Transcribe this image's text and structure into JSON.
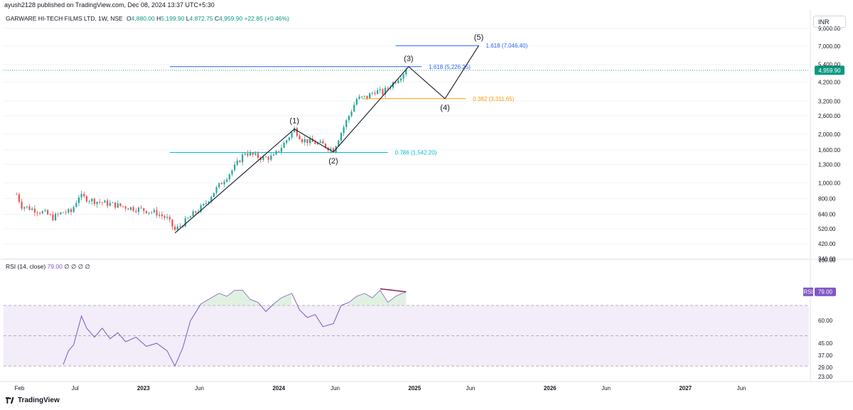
{
  "header": {
    "published": "ayush2128 published on TradingView.com, Dec 08, 2024 13:37 UTC+5:30",
    "symbol": "GARWARE HI-TECH FILMS LTD, 1W, NSE",
    "open_label": "O",
    "open": "4,880.00",
    "high_label": "H",
    "high": "5,199.90",
    "low_label": "L",
    "low": "4,872.75",
    "close_label": "C",
    "close": "4,959.90",
    "change": "+22.85 (+0.46%)",
    "currency": "INR"
  },
  "rsi_header": {
    "label": "RSI (14, close)",
    "value": "79.00",
    "extras": "∅ ∅ ∅ ∅"
  },
  "brand": {
    "name": "TradingView"
  },
  "colors": {
    "up": "#26a69a",
    "down": "#ef5350",
    "rsi": "#7e57c2",
    "rsi_band": "#ede7f6",
    "fib_blue": "#2962ff",
    "fib_orange": "#ff9800",
    "fib_teal": "#00bcd4",
    "last_price": "#089981"
  },
  "chart_data": [
    {
      "type": "candlestick",
      "title": "GARWARE HI-TECH FILMS LTD, 1W, NSE",
      "y_scale": "log",
      "ylim": [
        340,
        9000
      ],
      "y_ticks": [
        "9,000.00",
        "7,000.00",
        "5,400.00",
        "4,200.00",
        "3,200.00",
        "2,600.00",
        "2,000.00",
        "1,600.00",
        "1,300.00",
        "1,000.00",
        "800.00",
        "640.00",
        "520.00",
        "420.00",
        "340.00"
      ],
      "x_ticks": [
        "Feb",
        "Jul",
        "2023",
        "Jun",
        "2024",
        "Jun",
        "2025",
        "Jun",
        "2026",
        "Jun",
        "2027",
        "Jun"
      ],
      "last_price": {
        "value": 4959.9,
        "label": "4,959.90"
      },
      "price_path": [
        [
          "2022-01-24",
          850
        ],
        [
          "2022-02-07",
          720
        ],
        [
          "2022-03-07",
          690
        ],
        [
          "2022-04-11",
          650
        ],
        [
          "2022-05-02",
          610
        ],
        [
          "2022-05-30",
          660
        ],
        [
          "2022-06-20",
          660
        ],
        [
          "2022-07-11",
          830
        ],
        [
          "2022-08-15",
          780
        ],
        [
          "2022-09-19",
          750
        ],
        [
          "2022-10-31",
          720
        ],
        [
          "2022-11-28",
          700
        ],
        [
          "2023-01-02",
          680
        ],
        [
          "2023-02-06",
          650
        ],
        [
          "2023-03-06",
          600
        ],
        [
          "2023-03-27",
          510
        ],
        [
          "2023-04-17",
          560
        ],
        [
          "2023-05-15",
          640
        ],
        [
          "2023-06-12",
          720
        ],
        [
          "2023-07-10",
          880
        ],
        [
          "2023-08-07",
          1050
        ],
        [
          "2023-09-04",
          1250
        ],
        [
          "2023-10-02",
          1550
        ],
        [
          "2023-10-23",
          1480
        ],
        [
          "2023-11-20",
          1420
        ],
        [
          "2023-12-18",
          1450
        ],
        [
          "2024-01-15",
          1750
        ],
        [
          "2024-02-12",
          2150
        ],
        [
          "2024-03-04",
          1850
        ],
        [
          "2024-04-01",
          1780
        ],
        [
          "2024-04-29",
          1720
        ],
        [
          "2024-05-27",
          1600
        ],
        [
          "2024-06-17",
          2050
        ],
        [
          "2024-07-08",
          2600
        ],
        [
          "2024-07-29",
          3300
        ],
        [
          "2024-08-26",
          3400
        ],
        [
          "2024-09-16",
          3700
        ],
        [
          "2024-10-07",
          3600
        ],
        [
          "2024-10-28",
          4000
        ],
        [
          "2024-11-18",
          4450
        ],
        [
          "2024-12-09",
          4959.9
        ]
      ],
      "elliott_waves": [
        {
          "label": "(1)",
          "date": "2024-02-12",
          "price": 2150
        },
        {
          "label": "(2)",
          "date": "2024-05-27",
          "price": 1550
        },
        {
          "label": "(3)",
          "date": "2024-12-16",
          "price": 5226
        },
        {
          "label": "(4)",
          "date": "2025-03-24",
          "price": 3312
        },
        {
          "label": "(5)",
          "date": "2025-06-23",
          "price": 7046
        }
      ],
      "wave_start": {
        "date": "2023-03-27",
        "price": 490
      },
      "fib_levels": [
        {
          "label": "1.618 (7,046.40)",
          "value": 7046.4,
          "color": "#2962ff"
        },
        {
          "label": "1.618 (5,226.25)",
          "value": 5226.25,
          "color": "#2962ff"
        },
        {
          "label": "0.382 (3,311.65)",
          "value": 3311.65,
          "color": "#ff9800"
        },
        {
          "label": "0.786 (1,542.20)",
          "value": 1542.2,
          "color": "#00bcd4"
        }
      ]
    },
    {
      "type": "line",
      "title": "RSI (14, close)",
      "ylim": [
        23,
        100
      ],
      "y_ticks": [
        "100.00",
        "60.00",
        "45.00",
        "37.00",
        "29.00",
        "23.00"
      ],
      "bands": [
        30,
        50,
        70
      ],
      "last": {
        "value": 79,
        "label": "RSI",
        "value_label": "79.00"
      },
      "series": [
        {
          "values": [
            [
              "2022-05-30",
              31
            ],
            [
              "2022-06-13",
              40
            ],
            [
              "2022-06-27",
              44
            ],
            [
              "2022-07-18",
              63
            ],
            [
              "2022-08-01",
              55
            ],
            [
              "2022-08-22",
              49
            ],
            [
              "2022-09-12",
              55
            ],
            [
              "2022-10-03",
              48
            ],
            [
              "2022-10-24",
              52
            ],
            [
              "2022-11-14",
              46
            ],
            [
              "2022-12-12",
              49
            ],
            [
              "2023-01-09",
              43
            ],
            [
              "2023-02-06",
              45
            ],
            [
              "2023-03-06",
              40
            ],
            [
              "2023-03-27",
              30
            ],
            [
              "2023-04-17",
              42
            ],
            [
              "2023-05-08",
              60
            ],
            [
              "2023-06-05",
              71
            ],
            [
              "2023-07-03",
              75
            ],
            [
              "2023-07-24",
              78
            ],
            [
              "2023-08-14",
              76
            ],
            [
              "2023-09-04",
              80
            ],
            [
              "2023-09-25",
              80
            ],
            [
              "2023-10-16",
              74
            ],
            [
              "2023-11-06",
              72
            ],
            [
              "2023-11-27",
              66
            ],
            [
              "2023-12-18",
              71
            ],
            [
              "2024-01-08",
              75
            ],
            [
              "2024-02-05",
              78
            ],
            [
              "2024-02-26",
              67
            ],
            [
              "2024-03-18",
              62
            ],
            [
              "2024-04-08",
              64
            ],
            [
              "2024-04-29",
              56
            ],
            [
              "2024-05-27",
              58
            ],
            [
              "2024-06-17",
              70
            ],
            [
              "2024-07-08",
              72
            ],
            [
              "2024-07-29",
              76
            ],
            [
              "2024-08-19",
              78
            ],
            [
              "2024-09-09",
              75
            ],
            [
              "2024-09-30",
              80
            ],
            [
              "2024-10-21",
              72
            ],
            [
              "2024-11-11",
              76
            ],
            [
              "2024-12-09",
              79
            ]
          ]
        }
      ],
      "divergence_line": [
        [
          "2024-09-30",
          81
        ],
        [
          "2024-12-09",
          79
        ]
      ]
    }
  ]
}
